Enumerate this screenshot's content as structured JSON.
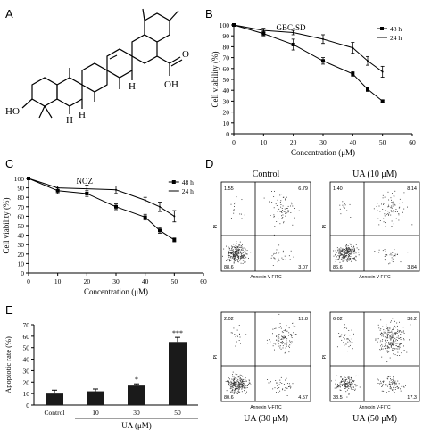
{
  "panels": {
    "a": "A",
    "b": "B",
    "c": "C",
    "d": "D",
    "e": "E"
  },
  "structure": {
    "labels": {
      "ho": "HO",
      "h1": "H",
      "h2": "H",
      "h3": "H",
      "h4": "H",
      "cooh": "OH",
      "carbonyl": "O"
    }
  },
  "chart_data": [
    {
      "id": "B",
      "type": "line",
      "title": "GBC-SD",
      "xlabel": "Concentration (μM)",
      "ylabel": "Cell viability (%)",
      "xlim": [
        0,
        60
      ],
      "ylim": [
        0,
        100
      ],
      "xticks": [
        0,
        10,
        20,
        30,
        40,
        50,
        60
      ],
      "yticks": [
        0,
        10,
        20,
        30,
        40,
        50,
        60,
        70,
        80,
        90,
        100
      ],
      "legend_position": "top-right",
      "x": [
        0,
        10,
        20,
        30,
        40,
        45,
        50
      ],
      "series": [
        {
          "name": "48 h",
          "marker": "square",
          "values": [
            100,
            92,
            82,
            67,
            55,
            41,
            30
          ],
          "errors": [
            1,
            2,
            5,
            3,
            2,
            2,
            1
          ]
        },
        {
          "name": "24 h",
          "marker": "none",
          "values": [
            100,
            95,
            93,
            87,
            79,
            67,
            57
          ],
          "errors": [
            1,
            2,
            2,
            4,
            5,
            4,
            5
          ]
        }
      ]
    },
    {
      "id": "C",
      "type": "line",
      "title": "NOZ",
      "xlabel": "Concentration (μM)",
      "ylabel": "Cell viability (%)",
      "xlim": [
        0,
        60
      ],
      "ylim": [
        0,
        100
      ],
      "xticks": [
        0,
        10,
        20,
        30,
        40,
        50,
        60
      ],
      "yticks": [
        0,
        10,
        20,
        30,
        40,
        50,
        60,
        70,
        80,
        90,
        100
      ],
      "legend_position": "top-right",
      "x": [
        0,
        10,
        20,
        30,
        40,
        45,
        50
      ],
      "series": [
        {
          "name": "48 h",
          "marker": "square",
          "values": [
            100,
            87,
            84,
            70,
            59,
            45,
            35
          ],
          "errors": [
            1,
            3,
            3,
            3,
            3,
            3,
            2
          ]
        },
        {
          "name": "24 h",
          "marker": "none",
          "values": [
            100,
            90,
            89,
            88,
            77,
            70,
            60
          ],
          "errors": [
            1,
            2,
            4,
            4,
            3,
            5,
            6
          ]
        }
      ]
    },
    {
      "id": "E",
      "type": "bar",
      "xlabel": "UA (μM)",
      "ylabel": "Apoptotic rate (%)",
      "ylim": [
        0,
        70
      ],
      "yticks": [
        0,
        10,
        20,
        30,
        40,
        50,
        60,
        70
      ],
      "categories": [
        "Control",
        "10",
        "30",
        "50"
      ],
      "values": [
        10,
        12,
        17,
        55
      ],
      "errors": [
        3,
        2,
        1.5,
        4
      ],
      "annotations": [
        "",
        "",
        "*",
        "***"
      ]
    },
    {
      "id": "D",
      "type": "scatter",
      "xlabel": "Annexin V-FITC",
      "ylabel": "PI",
      "plots": [
        {
          "caption": "Control",
          "quadrants": {
            "ul": "1.55",
            "ur": "6.79",
            "ll": "88.6",
            "lr": "3.07"
          }
        },
        {
          "caption": "UA (10 μM)",
          "quadrants": {
            "ul": "1.40",
            "ur": "8.14",
            "ll": "86.6",
            "lr": "3.84"
          }
        },
        {
          "caption": "UA (30 μM)",
          "quadrants": {
            "ul": "2.02",
            "ur": "12.8",
            "ll": "80.6",
            "lr": "4.57"
          }
        },
        {
          "caption": "UA (50 μM)",
          "quadrants": {
            "ul": "6.02",
            "ur": "38.2",
            "ll": "38.5",
            "lr": "17.3"
          }
        }
      ]
    }
  ]
}
